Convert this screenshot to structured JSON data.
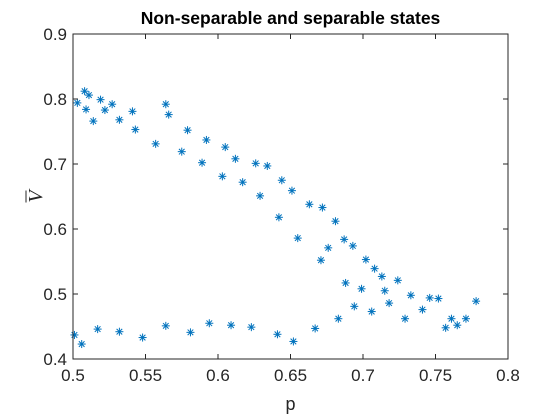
{
  "chart_data": {
    "type": "scatter",
    "title": "Non-separable and separable states",
    "xlabel": "p",
    "ylabel": "V",
    "ylabel_overline": true,
    "xlim": [
      0.5,
      0.8
    ],
    "ylim": [
      0.4,
      0.9
    ],
    "x_ticks": [
      "0.5",
      "0.55",
      "0.6",
      "0.65",
      "0.7",
      "0.75",
      "0.8"
    ],
    "y_ticks": [
      "0.4",
      "0.5",
      "0.6",
      "0.7",
      "0.8",
      "0.9"
    ],
    "grid": false,
    "box": true,
    "marker": "*",
    "marker_color": "#0072BD",
    "series": [
      {
        "points": [
          [
            0.503,
            0.794
          ],
          [
            0.508,
            0.812
          ],
          [
            0.511,
            0.806
          ],
          [
            0.519,
            0.799
          ],
          [
            0.527,
            0.792
          ],
          [
            0.541,
            0.781
          ],
          [
            0.564,
            0.792
          ],
          [
            0.566,
            0.776
          ],
          [
            0.579,
            0.752
          ],
          [
            0.592,
            0.737
          ],
          [
            0.605,
            0.726
          ],
          [
            0.612,
            0.708
          ],
          [
            0.626,
            0.701
          ],
          [
            0.634,
            0.697
          ],
          [
            0.644,
            0.675
          ],
          [
            0.651,
            0.659
          ],
          [
            0.663,
            0.638
          ],
          [
            0.672,
            0.633
          ],
          [
            0.681,
            0.612
          ],
          [
            0.687,
            0.584
          ],
          [
            0.693,
            0.574
          ],
          [
            0.702,
            0.553
          ],
          [
            0.708,
            0.539
          ],
          [
            0.713,
            0.527
          ],
          [
            0.724,
            0.521
          ],
          [
            0.733,
            0.498
          ],
          [
            0.746,
            0.494
          ],
          [
            0.752,
            0.493
          ],
          [
            0.761,
            0.462
          ],
          [
            0.765,
            0.452
          ],
          [
            0.771,
            0.462
          ],
          [
            0.778,
            0.489
          ],
          [
            0.757,
            0.448
          ],
          [
            0.741,
            0.476
          ],
          [
            0.729,
            0.462
          ],
          [
            0.718,
            0.486
          ],
          [
            0.706,
            0.473
          ],
          [
            0.694,
            0.481
          ],
          [
            0.683,
            0.462
          ],
          [
            0.667,
            0.447
          ],
          [
            0.652,
            0.427
          ],
          [
            0.641,
            0.438
          ],
          [
            0.623,
            0.449
          ],
          [
            0.609,
            0.452
          ],
          [
            0.594,
            0.455
          ],
          [
            0.581,
            0.441
          ],
          [
            0.564,
            0.451
          ],
          [
            0.548,
            0.433
          ],
          [
            0.532,
            0.442
          ],
          [
            0.517,
            0.446
          ],
          [
            0.506,
            0.423
          ],
          [
            0.501,
            0.437
          ],
          [
            0.655,
            0.586
          ],
          [
            0.671,
            0.552
          ],
          [
            0.688,
            0.517
          ],
          [
            0.699,
            0.508
          ],
          [
            0.715,
            0.505
          ],
          [
            0.676,
            0.571
          ],
          [
            0.642,
            0.618
          ],
          [
            0.629,
            0.651
          ],
          [
            0.617,
            0.672
          ],
          [
            0.603,
            0.681
          ],
          [
            0.589,
            0.702
          ],
          [
            0.575,
            0.719
          ],
          [
            0.557,
            0.731
          ],
          [
            0.543,
            0.753
          ],
          [
            0.532,
            0.768
          ],
          [
            0.522,
            0.783
          ],
          [
            0.514,
            0.766
          ],
          [
            0.509,
            0.784
          ]
        ]
      }
    ]
  }
}
